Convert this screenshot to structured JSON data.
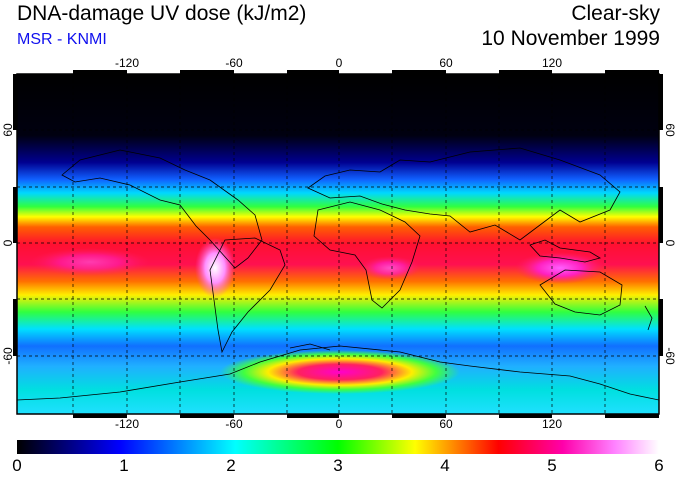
{
  "header": {
    "title": "DNA-damage UV dose (kJ/m2)",
    "source": "MSR - KNMI",
    "condition": "Clear-sky",
    "date": "10 November 1999"
  },
  "map": {
    "lon_ticks": [
      "-120",
      "-60",
      "0",
      "60",
      "120"
    ],
    "lat_ticks": [
      "60",
      "0",
      "-60"
    ],
    "lon_range": [
      -180,
      180
    ],
    "lat_range": [
      -90,
      90
    ]
  },
  "colorbar": {
    "labels": [
      "0",
      "1",
      "2",
      "3",
      "4",
      "5",
      "6"
    ],
    "range": [
      0,
      6
    ],
    "colors": [
      "#000000",
      "#0000ff",
      "#00ffff",
      "#00ff00",
      "#ffff00",
      "#ff0000",
      "#ff00ff",
      "#ffffff"
    ]
  }
}
